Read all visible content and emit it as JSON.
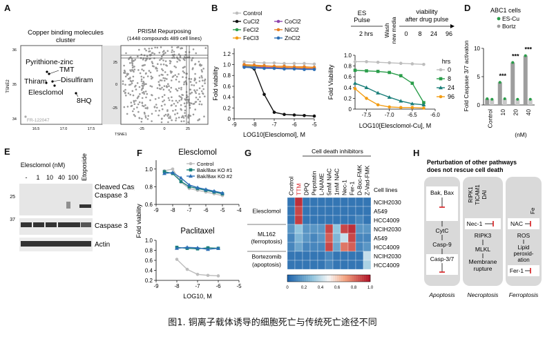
{
  "labels": {
    "A": "A",
    "B": "B",
    "C": "C",
    "D": "D",
    "E": "E",
    "F": "F",
    "G": "G",
    "H": "H"
  },
  "panelA": {
    "left_title1": "Copper binding molecules",
    "left_title2": "cluster",
    "right_title1": "PRISM Repurposing",
    "right_title2": "(1448 compounds 489 cell lines)",
    "molecules": [
      "Pyrithione-zinc",
      "TMT",
      "Thiram",
      "Disulfiram",
      "Elesclomol",
      "8HQ"
    ],
    "outlier": "FR-122047",
    "ylabel": "TSNE2",
    "xlabel": "TSNE1",
    "left_yticks": [
      "36",
      "35",
      "34"
    ],
    "left_xticks": [
      "16.5",
      "17.0",
      "17.5"
    ],
    "right_yticks": [
      "25",
      "0",
      "-25"
    ],
    "right_xticks": [
      "-25",
      "0",
      "25"
    ]
  },
  "chart_data": [
    {
      "panel": "B",
      "type": "line",
      "xlabel": "LOG10[Elesclomol], M",
      "ylabel": "Fold viability",
      "xlim": [
        -9,
        -5
      ],
      "ylim": [
        0,
        1.3
      ],
      "xticks": [
        "-9",
        "-8",
        "-7",
        "-6",
        "-5"
      ],
      "yticks": [
        "0",
        "0.2",
        "0.4",
        "0.6",
        "0.8",
        "1.0",
        "1.2"
      ],
      "legend": [
        "Control",
        "CuCl2",
        "FeCl2",
        "FeCl3",
        "CoCl2",
        "NiCl2",
        "ZnCl2"
      ],
      "series": [
        {
          "name": "Control",
          "x": [
            -8.5,
            -8,
            -7.5,
            -7,
            -6.5,
            -6,
            -5.5,
            -5
          ],
          "values": [
            1.05,
            1.04,
            1.03,
            1.03,
            1.02,
            1.02,
            1.02,
            1.01
          ]
        },
        {
          "name": "CuCl2",
          "x": [
            -8.5,
            -8,
            -7.5,
            -7,
            -6.5,
            -6,
            -5.5,
            -5
          ],
          "values": [
            0.98,
            0.92,
            0.45,
            0.12,
            0.08,
            0.07,
            0.06,
            0.05
          ]
        },
        {
          "name": "FeCl2",
          "x": [
            -8.5,
            -8,
            -7.5,
            -7,
            -6.5,
            -6,
            -5.5,
            -5
          ],
          "values": [
            0.97,
            0.96,
            0.95,
            0.95,
            0.94,
            0.94,
            0.93,
            0.93
          ]
        },
        {
          "name": "FeCl3",
          "x": [
            -8.5,
            -8,
            -7.5,
            -7,
            -6.5,
            -6,
            -5.5,
            -5
          ],
          "values": [
            0.99,
            0.98,
            0.96,
            0.95,
            0.95,
            0.94,
            0.94,
            0.93
          ]
        },
        {
          "name": "CoCl2",
          "x": [
            -8.5,
            -8,
            -7.5,
            -7,
            -6.5,
            -6,
            -5.5,
            -5
          ],
          "values": [
            0.96,
            0.95,
            0.95,
            0.94,
            0.93,
            0.93,
            0.92,
            0.92
          ]
        },
        {
          "name": "NiCl2",
          "x": [
            -8.5,
            -8,
            -7.5,
            -7,
            -6.5,
            -6,
            -5.5,
            -5
          ],
          "values": [
            1.0,
            0.99,
            0.98,
            0.97,
            0.97,
            0.96,
            0.96,
            0.95
          ]
        },
        {
          "name": "ZnCl2",
          "x": [
            -8.5,
            -8,
            -7.5,
            -7,
            -6.5,
            -6,
            -5.5,
            -5
          ],
          "values": [
            0.95,
            0.94,
            0.93,
            0.93,
            0.92,
            0.92,
            0.91,
            0.91
          ]
        }
      ]
    },
    {
      "panel": "C",
      "type": "line",
      "xlabel": "LOG10[Elesclomol-Cu], M",
      "ylabel": "Fold Viability",
      "xlim": [
        -7.75,
        -6.0
      ],
      "ylim": [
        0,
        1.0
      ],
      "xticks": [
        "-7.5",
        "-7.0",
        "-6.5",
        "-6.0"
      ],
      "yticks": [
        "0",
        "0.2",
        "0.4",
        "0.6",
        "0.8",
        "1.0"
      ],
      "legend_title": "hrs",
      "legend": [
        "0",
        "8",
        "24",
        "96"
      ],
      "series": [
        {
          "name": "0",
          "x": [
            -7.75,
            -7.5,
            -7.25,
            -7.0,
            -6.75,
            -6.5,
            -6.25
          ],
          "values": [
            0.88,
            0.88,
            0.87,
            0.86,
            0.85,
            0.84,
            0.83
          ]
        },
        {
          "name": "8",
          "x": [
            -7.75,
            -7.5,
            -7.25,
            -7.0,
            -6.75,
            -6.5,
            -6.25
          ],
          "values": [
            0.72,
            0.71,
            0.7,
            0.68,
            0.62,
            0.48,
            0.12
          ]
        },
        {
          "name": "24",
          "x": [
            -7.75,
            -7.5,
            -7.25,
            -7.0,
            -6.75,
            -6.5,
            -6.25
          ],
          "values": [
            0.48,
            0.4,
            0.3,
            0.22,
            0.15,
            0.1,
            0.08
          ]
        },
        {
          "name": "96",
          "x": [
            -7.75,
            -7.5,
            -7.25,
            -7.0,
            -6.75,
            -6.5,
            -6.25
          ],
          "values": [
            0.38,
            0.2,
            0.08,
            0.04,
            0.03,
            0.03,
            0.02
          ]
        }
      ],
      "schematic": {
        "pulse": "ES",
        "pulse2": "Pulse",
        "duration": "2 hrs",
        "wash1": "Wash",
        "wash2": "new media",
        "viability_title1": "viability",
        "viability_title2": "after drug pulse",
        "timepoints": [
          "0",
          "8",
          "24",
          "96"
        ]
      }
    },
    {
      "panel": "D",
      "type": "bar",
      "title": "ABC1 cells",
      "ylabel": "Fold Caspase 3/7 activaton",
      "xlabel": "(nM)",
      "categories": [
        "Control",
        "10",
        "20",
        "40"
      ],
      "ylim": [
        0,
        10
      ],
      "yticks": [
        "0",
        "5",
        "10"
      ],
      "legend": [
        "ES-Cu",
        "Bortz"
      ],
      "series": [
        {
          "name": "ES-Cu",
          "values": [
            1.1,
            4.0,
            7.5,
            8.7
          ]
        },
        {
          "name": "Bortz",
          "values": [
            1.0,
            1.1,
            1.0,
            1.0
          ]
        }
      ],
      "annotations": [
        "***",
        "***",
        "***"
      ]
    },
    {
      "panel": "F1",
      "type": "line",
      "title": "Elesclomol",
      "ylabel": "Fold viability",
      "xlim": [
        -9,
        -4
      ],
      "ylim": [
        0.6,
        1.1
      ],
      "xticks": [
        "-9",
        "-8",
        "-7",
        "-6",
        "-5",
        "-4"
      ],
      "yticks": [
        "0.6",
        "0.8",
        "1.0"
      ],
      "legend": [
        "Control",
        "Bak/Bax KO #1",
        "Bak/Bax KO #2"
      ],
      "series": [
        {
          "name": "Control",
          "x": [
            -8.5,
            -8,
            -7.5,
            -7,
            -6.5,
            -6,
            -5.5,
            -5
          ],
          "values": [
            0.98,
            1.0,
            0.85,
            0.78,
            0.76,
            0.74,
            0.72,
            0.7
          ]
        },
        {
          "name": "Bak/Bax KO #1",
          "x": [
            -8.5,
            -8,
            -7.5,
            -7,
            -6.5,
            -6,
            -5.5,
            -5
          ],
          "values": [
            0.97,
            0.95,
            0.86,
            0.8,
            0.78,
            0.76,
            0.74,
            0.72
          ]
        },
        {
          "name": "Bak/Bax KO #2",
          "x": [
            -8.5,
            -8,
            -7.5,
            -7,
            -6.5,
            -6,
            -5.5,
            -5
          ],
          "values": [
            0.95,
            0.96,
            0.9,
            0.82,
            0.79,
            0.77,
            0.75,
            0.73
          ]
        }
      ]
    },
    {
      "panel": "F2",
      "type": "line",
      "title": "Paclitaxel",
      "xlabel": "LOG10, M",
      "xlim": [
        -9,
        -5
      ],
      "ylim": [
        0.2,
        1.0
      ],
      "xticks": [
        "-9",
        "-8",
        "-7",
        "-6",
        "-5"
      ],
      "yticks": [
        "0.2",
        "0.4",
        "0.6",
        "0.8",
        "1.0"
      ],
      "series": [
        {
          "name": "Control",
          "x": [
            -8,
            -7.5,
            -7,
            -6.5,
            -6
          ],
          "values": [
            0.62,
            0.42,
            0.32,
            0.3,
            0.29
          ]
        },
        {
          "name": "Bak/Bax KO #1",
          "x": [
            -8,
            -7.5,
            -7,
            -6.5,
            -6
          ],
          "values": [
            0.86,
            0.84,
            0.83,
            0.85,
            0.84
          ]
        },
        {
          "name": "Bak/Bax KO #2",
          "x": [
            -8,
            -7.5,
            -7,
            -6.5,
            -6
          ],
          "values": [
            0.84,
            0.86,
            0.85,
            0.82,
            0.84
          ]
        }
      ]
    },
    {
      "panel": "G",
      "type": "heatmap",
      "title": "Cell death inhibitors",
      "columns": [
        "Control",
        "TTM",
        "DPQ",
        "Pepstatin",
        "L-NAME",
        "5mM NAC",
        "1mM NAC",
        "Nec-1",
        "Fer-1",
        "D-Boc-FMK",
        "Z-Vad-FMK"
      ],
      "row_groups": [
        "Elesclomol",
        "ML162 (ferroptosis)",
        "Bortezomib (apoptosis)"
      ],
      "rows_header": "Cell lines",
      "rows": [
        "NCIH2030",
        "A549",
        "HCC4009",
        "NCIH2030",
        "A549",
        "HCC4009",
        "NCIH2030",
        "HCC4009"
      ],
      "values": [
        [
          0.05,
          0.95,
          0.05,
          0.05,
          0.05,
          0.05,
          0.05,
          0.05,
          0.05,
          0.05,
          0.05
        ],
        [
          0.05,
          0.9,
          0.05,
          0.05,
          0.05,
          0.05,
          0.05,
          0.05,
          0.05,
          0.05,
          0.05
        ],
        [
          0.05,
          0.92,
          0.05,
          0.05,
          0.05,
          0.05,
          0.05,
          0.05,
          0.05,
          0.1,
          0.05
        ],
        [
          0.15,
          0.3,
          0.15,
          0.15,
          0.15,
          0.9,
          0.3,
          0.9,
          0.95,
          0.15,
          0.15
        ],
        [
          0.1,
          0.25,
          0.15,
          0.1,
          0.15,
          0.85,
          0.25,
          0.4,
          0.9,
          0.1,
          0.1
        ],
        [
          0.1,
          0.2,
          0.1,
          0.1,
          0.1,
          0.9,
          0.2,
          0.8,
          0.85,
          0.1,
          0.15
        ],
        [
          0.05,
          0.05,
          0.05,
          0.05,
          0.05,
          0.1,
          0.05,
          0.05,
          0.05,
          0.05,
          0.4
        ],
        [
          0.05,
          0.05,
          0.05,
          0.05,
          0.05,
          0.1,
          0.05,
          0.05,
          0.05,
          0.05,
          0.35
        ]
      ],
      "colorbar_ticks": [
        "0",
        "0.2",
        "0.4",
        "0.6",
        "0.8",
        "1.0"
      ]
    }
  ],
  "panelE": {
    "title": "Elesclomol (nM)",
    "lanes": [
      "-",
      "1",
      "10",
      "40",
      "100",
      "Etoposide"
    ],
    "bands": [
      "Cleaved Caspase 3",
      "Caspase 3",
      "Actin"
    ],
    "band_line2": "Caspase 3",
    "markers": [
      "25",
      "37"
    ]
  },
  "panelH": {
    "title1": "Perturbation of other pathways",
    "title2": "does not rescue cell death",
    "apoptosis": [
      "Bak, Bax",
      "CytC",
      "Casp-9",
      "Casp-3/7"
    ],
    "necroptosis": [
      "RIPK1",
      "TICAM1",
      "DAI",
      "Nec-1",
      "RIPK3",
      "MLKL",
      "Membrane",
      "rupture"
    ],
    "ferroptosis": [
      "NAC",
      "Fe",
      "ROS",
      "Lipid",
      "peroxid-",
      "ation",
      "Fer-1"
    ],
    "footers": [
      "Apoptosis",
      "Necroptosis",
      "Ferroptosis"
    ]
  },
  "caption": "图1. 铜离子载体诱导的细胞死亡与传统死亡途径不同",
  "colors": {
    "teal": "#1a7f7a",
    "green": "#2a9d4a",
    "orange": "#f39c12",
    "gray": "#bdbdbd",
    "red": "#d7191c",
    "blue": "#2c6fb5"
  }
}
